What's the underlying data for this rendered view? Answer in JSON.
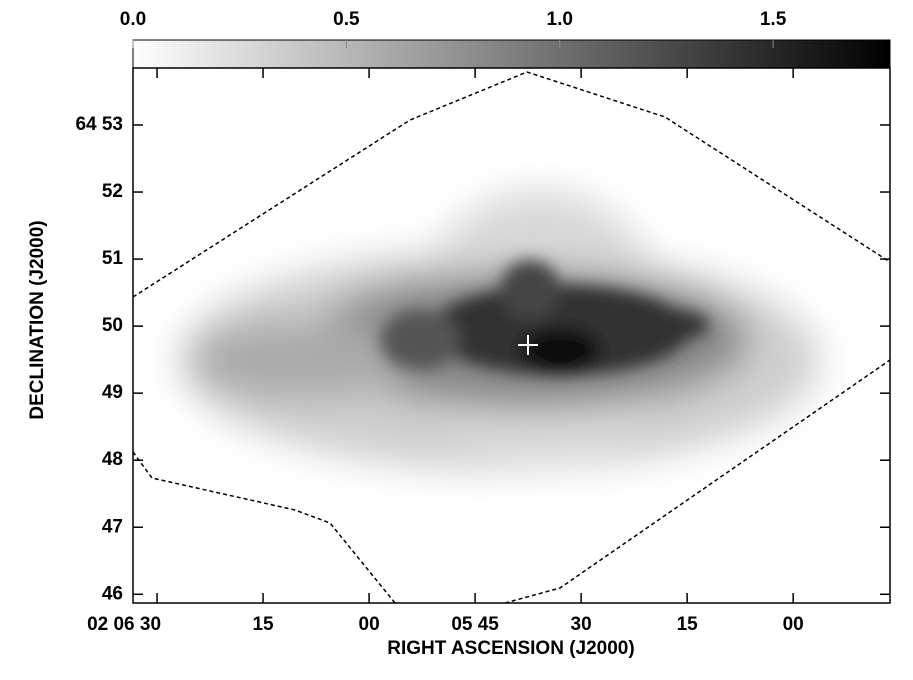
{
  "chart_data": {
    "type": "image",
    "xlabel": "RIGHT ASCENSION (J2000)",
    "ylabel": "DECLINATION (J2000)",
    "xlim": [
      393.4,
      286.3
    ],
    "xticks": [
      {
        "value": 390,
        "label": "02 06 30"
      },
      {
        "value": 375,
        "label": "15"
      },
      {
        "value": 360,
        "label": "00"
      },
      {
        "value": 345,
        "label": "05 45"
      },
      {
        "value": 330,
        "label": "30"
      },
      {
        "value": 315,
        "label": "15"
      },
      {
        "value": 300,
        "label": "00"
      }
    ],
    "ylim": [
      45.87,
      53.85
    ],
    "yticks": [
      46,
      47,
      48,
      49,
      50,
      51,
      52,
      {
        "value": 53,
        "label": "64 53"
      }
    ],
    "colorbar": {
      "lim": [
        0,
        1.774
      ],
      "ticks": [
        {
          "value": 0,
          "label": "0.0"
        },
        {
          "value": 0.5,
          "label": "0.5"
        },
        {
          "value": 1,
          "label": "1.0"
        },
        {
          "value": 1.5,
          "label": "1.5"
        }
      ]
    }
  }
}
